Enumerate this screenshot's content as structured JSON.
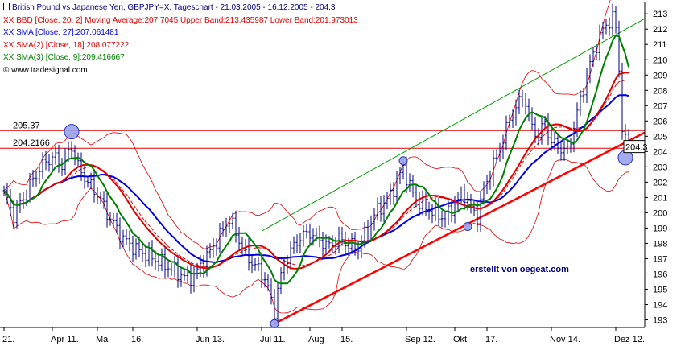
{
  "legend": {
    "title": "British Pound vs Japanese Yen, GBPJPY=X, Tageschart - 21.03.2005 - 16.12.2005 - 204.3",
    "bbd": "BBD [Close, 20, 2] Moving Average:207.7045 Upper Band:213.435987 Lower Band:201.973013",
    "sma1": "SMA [Close, 27]:207.061481",
    "sma2": "SMA(2) [Close, 18]:208.077222",
    "sma3": "SMA(3) [Close, 9]:209.416667",
    "source": "www.tradesignal.com",
    "xx": "XX"
  },
  "watermark": "erstellt von oegeat.com",
  "colors": {
    "bars": "#000080",
    "bollinger": "#e00000",
    "sma27": "#0000e0",
    "sma18": "#e00000",
    "sma9": "#008000",
    "trendline": "#ff0000",
    "channel": "#00a000",
    "levels": "#e00000",
    "background": "#ffffff",
    "frame": "#000000"
  },
  "chart_data": {
    "type": "ohlc",
    "title": "British Pound vs Japanese Yen, GBPJPY=X, Tageschart - 21.03.2005 - 16.12.2005 - 204.3",
    "ylim": [
      192.5,
      213.8
    ],
    "yticks": [
      193,
      194,
      195,
      196,
      197,
      198,
      199,
      200,
      201,
      202,
      203,
      204,
      205,
      206,
      207,
      208,
      209,
      210,
      211,
      212,
      213
    ],
    "xticks": [
      {
        "label": "21.",
        "day": 0
      },
      {
        "label": "Apr 11.",
        "day": 15
      },
      {
        "label": "Mai",
        "day": 29
      },
      {
        "label": "16.",
        "day": 40
      },
      {
        "label": "Jun 13.",
        "day": 60
      },
      {
        "label": "Jul 11.",
        "day": 80
      },
      {
        "label": "Aug",
        "day": 95
      },
      {
        "label": "15.",
        "day": 105
      },
      {
        "label": "Sep 12.",
        "day": 125
      },
      {
        "label": "Okt",
        "day": 140
      },
      {
        "label": "17.",
        "day": 150
      },
      {
        "label": "Nov 14.",
        "day": 170
      },
      {
        "label": "Dez 12.",
        "day": 190
      }
    ],
    "last_day": 194,
    "close_keypoints": [
      [
        0,
        201.3
      ],
      [
        3,
        199.8
      ],
      [
        6,
        201.0
      ],
      [
        9,
        202.2
      ],
      [
        13,
        203.4
      ],
      [
        16,
        203.6
      ],
      [
        18,
        203.1
      ],
      [
        20,
        204.0
      ],
      [
        21,
        204.3
      ],
      [
        23,
        203.0
      ],
      [
        26,
        202.0
      ],
      [
        29,
        201.2
      ],
      [
        33,
        199.6
      ],
      [
        37,
        198.3
      ],
      [
        41,
        197.6
      ],
      [
        45,
        197.2
      ],
      [
        49,
        196.7
      ],
      [
        53,
        196.2
      ],
      [
        57,
        195.7
      ],
      [
        59,
        195.9
      ],
      [
        62,
        196.8
      ],
      [
        65,
        197.8
      ],
      [
        68,
        198.9
      ],
      [
        70,
        199.6
      ],
      [
        73,
        198.2
      ],
      [
        76,
        197.0
      ],
      [
        79,
        196.3
      ],
      [
        81,
        195.7
      ],
      [
        83,
        194.3
      ],
      [
        84,
        193.5
      ],
      [
        85,
        195.0
      ],
      [
        87,
        196.6
      ],
      [
        89,
        197.5
      ],
      [
        92,
        198.4
      ],
      [
        95,
        198.7
      ],
      [
        98,
        198.2
      ],
      [
        101,
        197.8
      ],
      [
        104,
        198.3
      ],
      [
        107,
        197.9
      ],
      [
        110,
        197.7
      ],
      [
        113,
        199.0
      ],
      [
        116,
        200.2
      ],
      [
        119,
        200.8
      ],
      [
        122,
        202.0
      ],
      [
        124,
        203.0
      ],
      [
        126,
        201.7
      ],
      [
        128,
        200.9
      ],
      [
        131,
        200.3
      ],
      [
        134,
        200.0
      ],
      [
        137,
        199.6
      ],
      [
        140,
        200.6
      ],
      [
        143,
        201.2
      ],
      [
        145,
        200.2
      ],
      [
        147,
        199.8
      ],
      [
        149,
        201.5
      ],
      [
        152,
        203.2
      ],
      [
        155,
        204.8
      ],
      [
        157,
        206.1
      ],
      [
        159,
        206.9
      ],
      [
        161,
        207.5
      ],
      [
        162,
        207.2
      ],
      [
        164,
        205.5
      ],
      [
        166,
        205.1
      ],
      [
        168,
        205.9
      ],
      [
        170,
        204.6
      ],
      [
        173,
        204.2
      ],
      [
        175,
        204.0
      ],
      [
        177,
        205.6
      ],
      [
        179,
        207.4
      ],
      [
        181,
        208.9
      ],
      [
        183,
        210.4
      ],
      [
        185,
        211.5
      ],
      [
        187,
        212.3
      ],
      [
        189,
        212.7
      ],
      [
        190,
        212.1
      ],
      [
        191,
        209.4
      ],
      [
        192,
        205.6
      ],
      [
        193,
        204.6
      ],
      [
        194,
        204.3
      ]
    ],
    "indicators": {
      "sma27": 207.061481,
      "sma18": 208.077222,
      "sma9": 209.416667,
      "bollinger_middle": 207.7045,
      "bollinger_upper": 213.435987,
      "bollinger_lower": 201.973013,
      "last_close": 204.3
    },
    "levels": [
      {
        "label": "205.37",
        "value": 205.37
      },
      {
        "label": "204.2166",
        "value": 204.2166
      }
    ],
    "last_price_label": "204.3",
    "trendline": {
      "start": [
        84,
        192.75
      ],
      "end": [
        194,
        204.7
      ]
    },
    "channel_line": {
      "start": [
        80,
        198.8
      ],
      "end": [
        194,
        212.1
      ]
    },
    "markers": [
      {
        "day": 21,
        "value": 205.3
      },
      {
        "day": 124,
        "value": 203.4
      },
      {
        "day": 84,
        "value": 192.75
      },
      {
        "day": 144,
        "value": 199.1
      },
      {
        "day": 193,
        "value": 203.6
      }
    ],
    "grid": false,
    "legend": "top-left"
  }
}
